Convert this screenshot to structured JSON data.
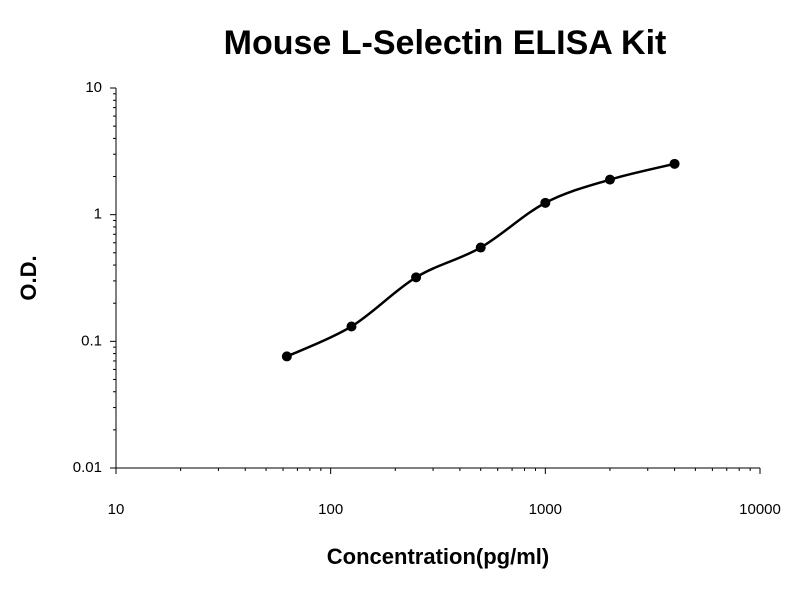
{
  "chart_data": {
    "type": "scatter",
    "title": "Mouse L-Selectin ELISA Kit",
    "xlabel": "Concentration(pg/ml)",
    "ylabel": "O.D.",
    "x": [
      62.5,
      125,
      250,
      500,
      1000,
      2000,
      4000
    ],
    "values": [
      0.076,
      0.131,
      0.32,
      0.55,
      1.24,
      1.89,
      2.52
    ],
    "color": "#000000",
    "fit_line": true,
    "xscale": "log",
    "yscale": "log",
    "xlim": [
      10,
      10000
    ],
    "ylim": [
      0.01,
      10
    ],
    "xticks": [
      10,
      100,
      1000,
      10000
    ],
    "yticks": [
      0.01,
      0.1,
      1,
      10
    ]
  }
}
